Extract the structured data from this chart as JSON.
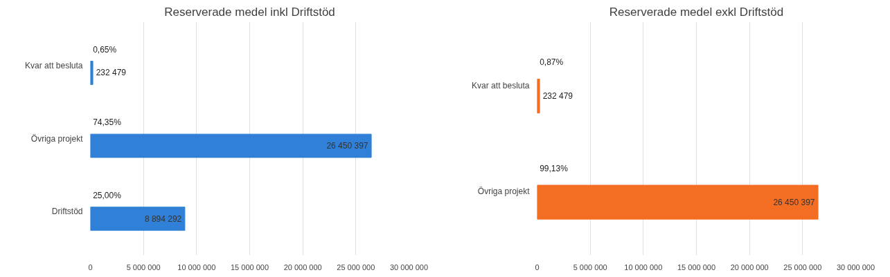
{
  "chart_data": [
    {
      "type": "bar",
      "orientation": "horizontal",
      "title": "Reserverade medel inkl Driftstöd",
      "categories": [
        "Kvar att besluta",
        "Övriga projekt",
        "Driftstöd"
      ],
      "values": [
        232479,
        26450397,
        8894292
      ],
      "color": "#2f80d6",
      "value_labels": [
        "232 479",
        "26 450 397",
        "8 894 292"
      ],
      "annotations": [
        "0,65%",
        "74,35%",
        "25,00%"
      ],
      "xlim": [
        0,
        30000000
      ],
      "xticks": [
        0,
        {
          "value": 5000000,
          "label": "5 000 000"
        },
        {
          "value": 10000000,
          "label": "10 000 000"
        },
        {
          "value": 15000000,
          "label": "15 000 000"
        },
        {
          "value": 20000000,
          "label": "20 000 000"
        },
        {
          "value": 25000000,
          "label": "25 000 000"
        },
        {
          "value": 30000000,
          "label": "30 000 000"
        }
      ],
      "grid": "x"
    },
    {
      "type": "bar",
      "orientation": "horizontal",
      "title": "Reserverade medel exkl Driftstöd",
      "categories": [
        "Kvar att besluta",
        "Övriga projekt"
      ],
      "values": [
        232479,
        26450397
      ],
      "color": "#f36d23",
      "value_labels": [
        "232 479",
        "26 450 397"
      ],
      "annotations": [
        "0,87%",
        "99,13%"
      ],
      "xlim": [
        0,
        30000000
      ],
      "xticks": [
        0,
        {
          "value": 5000000,
          "label": "5 000 000"
        },
        {
          "value": 10000000,
          "label": "10 000 000"
        },
        {
          "value": 15000000,
          "label": "15 000 000"
        },
        {
          "value": 20000000,
          "label": "20 000 000"
        },
        {
          "value": 25000000,
          "label": "25 000 000"
        },
        {
          "value": 30000000,
          "label": "30 000 000"
        }
      ],
      "grid": "x"
    }
  ]
}
